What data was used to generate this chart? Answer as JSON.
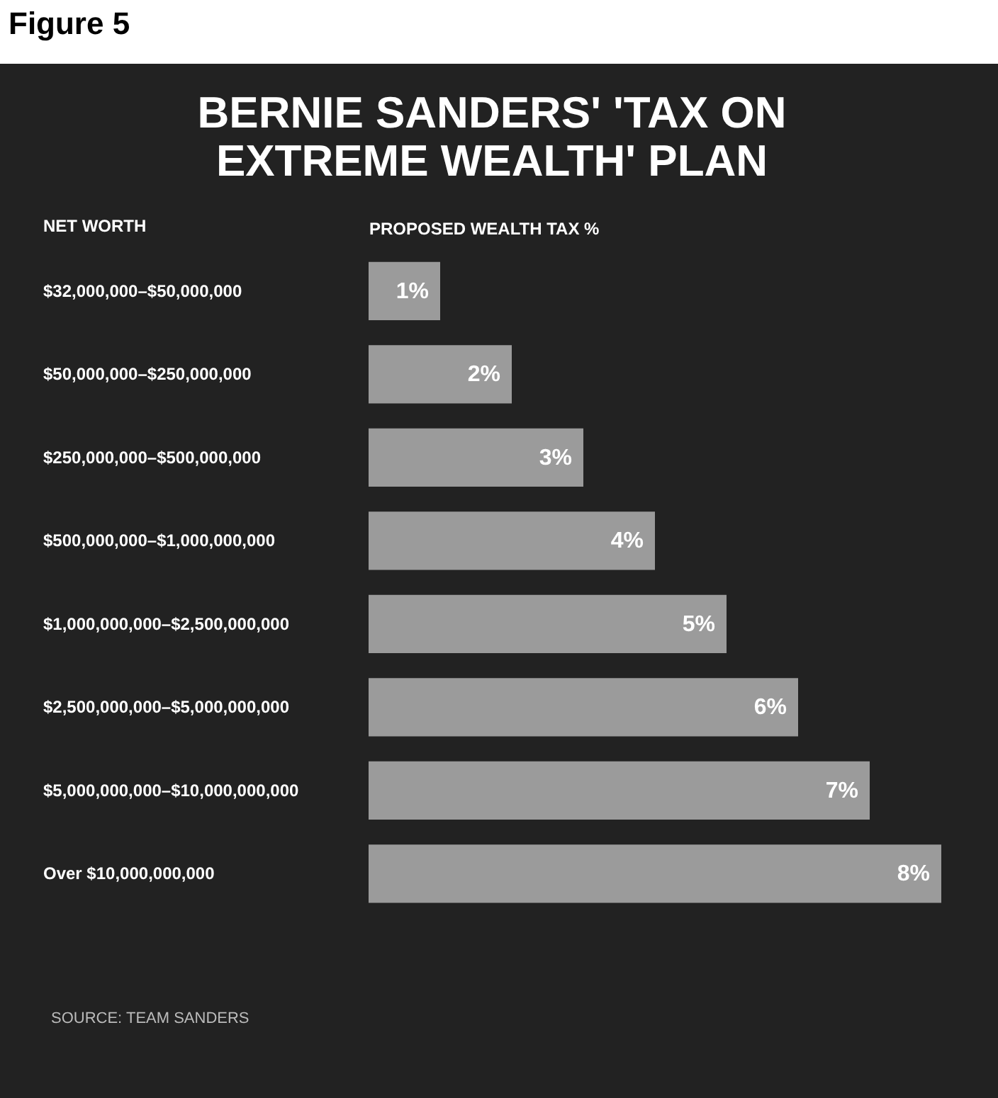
{
  "chart_data": {
    "type": "bar",
    "orientation": "horizontal",
    "title": "BERNIE SANDERS' 'TAX ON EXTREME WEALTH' PLAN",
    "xlabel": "PROPOSED WEALTH TAX %",
    "ylabel": "NET WORTH",
    "categories": [
      "$32,000,000–$50,000,000",
      "$50,000,000–$250,000,000",
      "$250,000,000–$500,000,000",
      "$500,000,000–$1,000,000,000",
      "$1,000,000,000–$2,500,000,000",
      "$2,500,000,000–$5,000,000,000",
      "$5,000,000,000–$10,000,000,000",
      "Over $10,000,000,000"
    ],
    "values": [
      1,
      2,
      3,
      4,
      5,
      6,
      7,
      8
    ],
    "value_labels": [
      "1%",
      "2%",
      "3%",
      "4%",
      "5%",
      "6%",
      "7%",
      "8%"
    ],
    "color": "#9b9b9b",
    "tick_labels": "y",
    "grid": false,
    "annotations": [
      "Figure 5",
      "SOURCE: TEAM SANDERS"
    ]
  }
}
